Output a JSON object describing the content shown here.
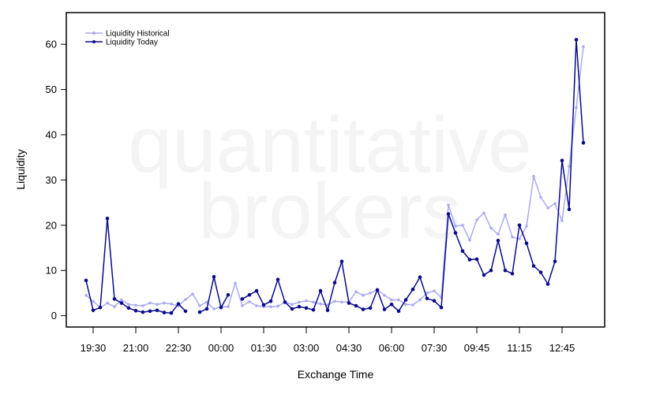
{
  "chart_data": {
    "type": "line",
    "xlabel": "Exchange Time",
    "ylabel": "Liquidity",
    "ylim": [
      -2.5,
      67
    ],
    "yticks": [
      0,
      10,
      20,
      30,
      40,
      50,
      60
    ],
    "xtick_labels": [
      "19:30",
      "21:00",
      "22:30",
      "00:00",
      "01:30",
      "03:00",
      "04:30",
      "06:00",
      "07:30",
      "09:45",
      "11:15",
      "12:45"
    ],
    "watermark": [
      "quantitative",
      "brokers"
    ],
    "legend_position": "top-left",
    "series": [
      {
        "name": "Liquidity Historical",
        "color": "#aaaaf2",
        "values": [
          4.5,
          3.2,
          1.8,
          2.8,
          2.0,
          3.5,
          2.5,
          2.3,
          2.2,
          2.8,
          2.5,
          2.8,
          2.6,
          2.2,
          3.6,
          4.8,
          2.2,
          3.0,
          1.5,
          2.0,
          2.0,
          7.2,
          2.2,
          3.1,
          2.2,
          2.0,
          2.0,
          2.1,
          3.0,
          2.5,
          3.0,
          3.3,
          3.0,
          2.6,
          2.4,
          3.2,
          3.0,
          3.1,
          5.3,
          4.5,
          5.0,
          5.7,
          4.5,
          3.5,
          3.5,
          2.5,
          2.4,
          3.5,
          5.0,
          5.5,
          4.0,
          24.5,
          19.8,
          20.0,
          16.7,
          21.2,
          22.7,
          19.4,
          18.0,
          22.3,
          17.4,
          17.0,
          19.8,
          30.8,
          26.2,
          23.8,
          24.8,
          21.0,
          33.0,
          46.0,
          59.5
        ]
      },
      {
        "name": "Liquidity Today",
        "color": "#0a0a8c",
        "values": [
          7.8,
          1.2,
          1.8,
          21.5,
          3.7,
          2.8,
          1.7,
          1.1,
          0.8,
          1.0,
          1.2,
          0.7,
          0.6,
          2.6,
          1.0,
          null,
          0.8,
          1.5,
          8.6,
          1.8,
          4.6,
          null,
          3.7,
          4.6,
          5.5,
          2.4,
          3.2,
          8.0,
          3.0,
          1.5,
          2.0,
          1.7,
          1.3,
          5.5,
          1.2,
          7.3,
          12.0,
          2.8,
          2.2,
          1.4,
          1.7,
          5.7,
          1.4,
          2.5,
          1.0,
          3.5,
          5.8,
          8.5,
          3.8,
          3.3,
          1.8,
          22.5,
          18.3,
          14.3,
          12.4,
          12.5,
          9.0,
          10.0,
          16.6,
          10.0,
          9.3,
          20.0,
          16.0,
          11.0,
          9.6,
          7.0,
          12.0,
          34.3,
          23.5,
          61.0,
          38.2
        ]
      }
    ]
  }
}
